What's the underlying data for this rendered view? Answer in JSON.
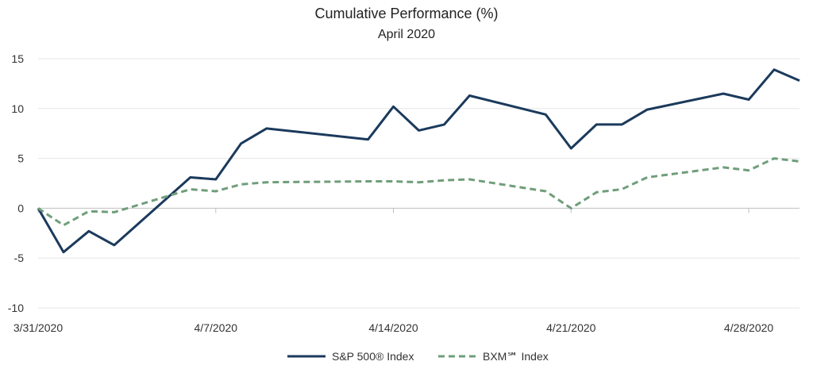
{
  "chart_data": {
    "type": "line",
    "title": "Cumulative Performance (%)",
    "subtitle": "April 2020",
    "xlabel": "",
    "ylabel": "",
    "ylim": [
      -10,
      15
    ],
    "yticks": [
      -10,
      -5,
      0,
      5,
      10,
      15
    ],
    "xlim": [
      "3/31/2020",
      "4/30/2020"
    ],
    "xticks": [
      "3/31/2020",
      "4/7/2020",
      "4/14/2020",
      "4/21/2020",
      "4/28/2020"
    ],
    "grid": "horizontal",
    "legend": "bottom-center",
    "x": [
      "3/31/2020",
      "4/1/2020",
      "4/2/2020",
      "4/3/2020",
      "4/6/2020",
      "4/7/2020",
      "4/8/2020",
      "4/9/2020",
      "4/13/2020",
      "4/14/2020",
      "4/15/2020",
      "4/16/2020",
      "4/17/2020",
      "4/20/2020",
      "4/21/2020",
      "4/22/2020",
      "4/23/2020",
      "4/24/2020",
      "4/27/2020",
      "4/28/2020",
      "4/29/2020",
      "4/30/2020"
    ],
    "series": [
      {
        "name": "S&P 500® Index",
        "color": "#1b3a5c",
        "dash": "solid",
        "values": [
          0,
          -4.4,
          -2.3,
          -3.7,
          3.1,
          2.9,
          6.5,
          8.0,
          6.9,
          10.2,
          7.8,
          8.4,
          11.3,
          9.4,
          6.0,
          8.4,
          8.4,
          9.9,
          11.5,
          10.9,
          13.9,
          12.8
        ]
      },
      {
        "name": "BXM℠ Index",
        "color": "#6f9e7a",
        "dash": "dashed",
        "values": [
          0,
          -1.7,
          -0.3,
          -0.4,
          1.9,
          1.7,
          2.4,
          2.6,
          2.7,
          2.7,
          2.6,
          2.8,
          2.9,
          1.7,
          0.0,
          1.6,
          1.9,
          3.1,
          4.1,
          3.8,
          5.0,
          4.7
        ]
      }
    ]
  }
}
